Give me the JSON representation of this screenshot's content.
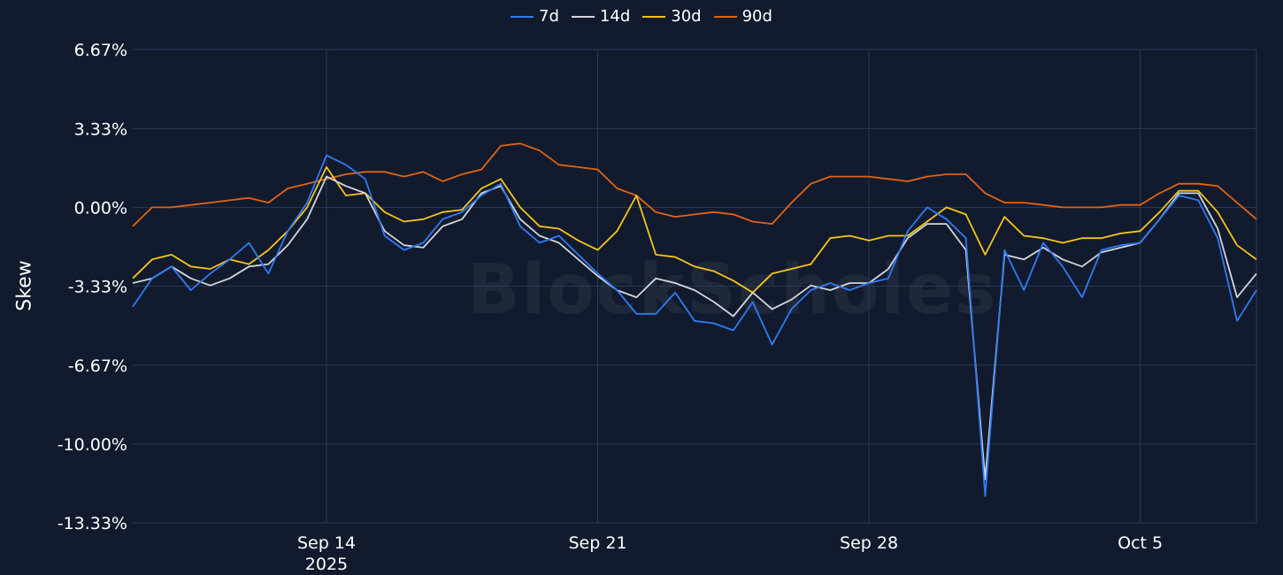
{
  "legend": [
    "7d",
    "14d",
    "30d",
    "90d"
  ],
  "watermark": "BlockScholes",
  "colors": {
    "background": "#111b2d",
    "grid": "#2a3a5a",
    "7d": "#2f7bf6",
    "14d": "#d3d6dc",
    "30d": "#f5c518",
    "90d": "#e06414"
  },
  "chart_data": {
    "type": "line",
    "ylabel": "Skew",
    "y_ticks": [
      "6.67%",
      "3.33%",
      "0.00%",
      "-3.33%",
      "-6.67%",
      "-10.00%",
      "-13.33%"
    ],
    "y_tick_values": [
      6.67,
      3.33,
      0.0,
      -3.33,
      -6.67,
      -10.0,
      -13.33
    ],
    "ylim": [
      -13.33,
      6.67
    ],
    "x_range": [
      "2025-09-09",
      "2025-10-08"
    ],
    "x_ticks": [
      {
        "label": "Sep 14",
        "sub": "2025",
        "date": "2025-09-14"
      },
      {
        "label": "Sep 21",
        "sub": "",
        "date": "2025-09-21"
      },
      {
        "label": "Sep 28",
        "sub": "",
        "date": "2025-09-28"
      },
      {
        "label": "Oct 5",
        "sub": "",
        "date": "2025-10-05"
      }
    ],
    "grid": true,
    "legend_position": "top-center",
    "series": [
      {
        "name": "7d",
        "x": [
          "2025-09-09",
          "2025-09-09T12:00",
          "2025-09-10",
          "2025-09-10T12:00",
          "2025-09-11",
          "2025-09-11T12:00",
          "2025-09-12",
          "2025-09-12T12:00",
          "2025-09-13",
          "2025-09-13T12:00",
          "2025-09-14",
          "2025-09-14T12:00",
          "2025-09-15",
          "2025-09-15T12:00",
          "2025-09-16",
          "2025-09-16T12:00",
          "2025-09-17",
          "2025-09-17T12:00",
          "2025-09-18",
          "2025-09-18T12:00",
          "2025-09-19",
          "2025-09-19T12:00",
          "2025-09-20",
          "2025-09-20T12:00",
          "2025-09-21",
          "2025-09-21T12:00",
          "2025-09-22",
          "2025-09-22T12:00",
          "2025-09-23",
          "2025-09-23T12:00",
          "2025-09-24",
          "2025-09-24T12:00",
          "2025-09-25",
          "2025-09-25T12:00",
          "2025-09-26",
          "2025-09-26T12:00",
          "2025-09-27",
          "2025-09-27T12:00",
          "2025-09-28",
          "2025-09-28T12:00",
          "2025-09-29",
          "2025-09-29T12:00",
          "2025-09-30",
          "2025-09-30T12:00",
          "2025-10-01",
          "2025-10-01T12:00",
          "2025-10-02",
          "2025-10-02T12:00",
          "2025-10-03",
          "2025-10-03T12:00",
          "2025-10-04",
          "2025-10-04T12:00",
          "2025-10-05",
          "2025-10-05T12:00",
          "2025-10-06",
          "2025-10-06T12:00",
          "2025-10-07",
          "2025-10-07T12:00",
          "2025-10-08"
        ],
        "values": [
          -4.2,
          -3.0,
          -2.5,
          -3.5,
          -2.8,
          -2.2,
          -1.5,
          -2.8,
          -1.0,
          0.2,
          2.2,
          1.8,
          1.2,
          -1.2,
          -1.8,
          -1.5,
          -0.5,
          -0.2,
          0.5,
          1.0,
          -0.8,
          -1.5,
          -1.2,
          -2.0,
          -2.8,
          -3.5,
          -4.5,
          -4.5,
          -3.6,
          -4.8,
          -4.9,
          -5.2,
          -4.0,
          -5.8,
          -4.3,
          -3.5,
          -3.2,
          -3.5,
          -3.2,
          -3.0,
          -1.0,
          0.0,
          -0.5,
          -1.3,
          -12.2,
          -1.8,
          -3.5,
          -1.5,
          -2.5,
          -3.8,
          -1.8,
          -1.6,
          -1.5,
          -0.5,
          0.5,
          0.3,
          -1.3,
          -4.8,
          -3.5
        ]
      },
      {
        "name": "14d",
        "x": [
          "2025-09-09",
          "2025-09-09T12:00",
          "2025-09-10",
          "2025-09-10T12:00",
          "2025-09-11",
          "2025-09-11T12:00",
          "2025-09-12",
          "2025-09-12T12:00",
          "2025-09-13",
          "2025-09-13T12:00",
          "2025-09-14",
          "2025-09-14T12:00",
          "2025-09-15",
          "2025-09-15T12:00",
          "2025-09-16",
          "2025-09-16T12:00",
          "2025-09-17",
          "2025-09-17T12:00",
          "2025-09-18",
          "2025-09-18T12:00",
          "2025-09-19",
          "2025-09-19T12:00",
          "2025-09-20",
          "2025-09-20T12:00",
          "2025-09-21",
          "2025-09-21T12:00",
          "2025-09-22",
          "2025-09-22T12:00",
          "2025-09-23",
          "2025-09-23T12:00",
          "2025-09-24",
          "2025-09-24T12:00",
          "2025-09-25",
          "2025-09-25T12:00",
          "2025-09-26",
          "2025-09-26T12:00",
          "2025-09-27",
          "2025-09-27T12:00",
          "2025-09-28",
          "2025-09-28T12:00",
          "2025-09-29",
          "2025-09-29T12:00",
          "2025-09-30",
          "2025-09-30T12:00",
          "2025-10-01",
          "2025-10-01T12:00",
          "2025-10-02",
          "2025-10-02T12:00",
          "2025-10-03",
          "2025-10-03T12:00",
          "2025-10-04",
          "2025-10-04T12:00",
          "2025-10-05",
          "2025-10-05T12:00",
          "2025-10-06",
          "2025-10-06T12:00",
          "2025-10-07",
          "2025-10-07T12:00",
          "2025-10-08"
        ],
        "values": [
          -3.2,
          -3.0,
          -2.5,
          -3.0,
          -3.3,
          -3.0,
          -2.5,
          -2.4,
          -1.6,
          -0.5,
          1.3,
          0.9,
          0.6,
          -1.0,
          -1.6,
          -1.7,
          -0.8,
          -0.5,
          0.6,
          0.9,
          -0.5,
          -1.2,
          -1.5,
          -2.2,
          -2.9,
          -3.5,
          -3.8,
          -3.0,
          -3.2,
          -3.5,
          -4.0,
          -4.6,
          -3.6,
          -4.3,
          -3.9,
          -3.3,
          -3.5,
          -3.2,
          -3.2,
          -2.6,
          -1.3,
          -0.7,
          -0.7,
          -1.8,
          -11.5,
          -2.0,
          -2.2,
          -1.7,
          -2.2,
          -2.5,
          -1.9,
          -1.7,
          -1.5,
          -0.5,
          0.6,
          0.6,
          -0.9,
          -3.8,
          -2.8
        ]
      },
      {
        "name": "30d",
        "x": [
          "2025-09-09",
          "2025-09-09T12:00",
          "2025-09-10",
          "2025-09-10T12:00",
          "2025-09-11",
          "2025-09-11T12:00",
          "2025-09-12",
          "2025-09-12T12:00",
          "2025-09-13",
          "2025-09-13T12:00",
          "2025-09-14",
          "2025-09-14T12:00",
          "2025-09-15",
          "2025-09-15T12:00",
          "2025-09-16",
          "2025-09-16T12:00",
          "2025-09-17",
          "2025-09-17T12:00",
          "2025-09-18",
          "2025-09-18T12:00",
          "2025-09-19",
          "2025-09-19T12:00",
          "2025-09-20",
          "2025-09-20T12:00",
          "2025-09-21",
          "2025-09-21T12:00",
          "2025-09-22",
          "2025-09-22T12:00",
          "2025-09-23",
          "2025-09-23T12:00",
          "2025-09-24",
          "2025-09-24T12:00",
          "2025-09-25",
          "2025-09-25T12:00",
          "2025-09-26",
          "2025-09-26T12:00",
          "2025-09-27",
          "2025-09-27T12:00",
          "2025-09-28",
          "2025-09-28T12:00",
          "2025-09-29",
          "2025-09-29T12:00",
          "2025-09-30",
          "2025-09-30T12:00",
          "2025-10-01",
          "2025-10-01T12:00",
          "2025-10-02",
          "2025-10-02T12:00",
          "2025-10-03",
          "2025-10-03T12:00",
          "2025-10-04",
          "2025-10-04T12:00",
          "2025-10-05",
          "2025-10-05T12:00",
          "2025-10-06",
          "2025-10-06T12:00",
          "2025-10-07",
          "2025-10-07T12:00",
          "2025-10-08"
        ],
        "values": [
          -3.0,
          -2.2,
          -2.0,
          -2.5,
          -2.6,
          -2.2,
          -2.4,
          -1.8,
          -1.0,
          0.0,
          1.7,
          0.5,
          0.6,
          -0.2,
          -0.6,
          -0.5,
          -0.2,
          -0.1,
          0.8,
          1.2,
          0.0,
          -0.8,
          -0.9,
          -1.4,
          -1.8,
          -1.0,
          0.5,
          -2.0,
          -2.1,
          -2.5,
          -2.7,
          -3.1,
          -3.6,
          -2.8,
          -2.6,
          -2.4,
          -1.3,
          -1.2,
          -1.4,
          -1.2,
          -1.2,
          -0.6,
          0.0,
          -0.3,
          -2.0,
          -0.4,
          -1.2,
          -1.3,
          -1.5,
          -1.3,
          -1.3,
          -1.1,
          -1.0,
          -0.2,
          0.7,
          0.7,
          -0.2,
          -1.6,
          -2.2
        ]
      },
      {
        "name": "90d",
        "x": [
          "2025-09-09",
          "2025-09-09T12:00",
          "2025-09-10",
          "2025-09-10T12:00",
          "2025-09-11",
          "2025-09-11T12:00",
          "2025-09-12",
          "2025-09-12T12:00",
          "2025-09-13",
          "2025-09-13T12:00",
          "2025-09-14",
          "2025-09-14T12:00",
          "2025-09-15",
          "2025-09-15T12:00",
          "2025-09-16",
          "2025-09-16T12:00",
          "2025-09-17",
          "2025-09-17T12:00",
          "2025-09-18",
          "2025-09-18T12:00",
          "2025-09-19",
          "2025-09-19T12:00",
          "2025-09-20",
          "2025-09-20T12:00",
          "2025-09-21",
          "2025-09-21T12:00",
          "2025-09-22",
          "2025-09-22T12:00",
          "2025-09-23",
          "2025-09-23T12:00",
          "2025-09-24",
          "2025-09-24T12:00",
          "2025-09-25",
          "2025-09-25T12:00",
          "2025-09-26",
          "2025-09-26T12:00",
          "2025-09-27",
          "2025-09-27T12:00",
          "2025-09-28",
          "2025-09-28T12:00",
          "2025-09-29",
          "2025-09-29T12:00",
          "2025-09-30",
          "2025-09-30T12:00",
          "2025-10-01",
          "2025-10-01T12:00",
          "2025-10-02",
          "2025-10-02T12:00",
          "2025-10-03",
          "2025-10-03T12:00",
          "2025-10-04",
          "2025-10-04T12:00",
          "2025-10-05",
          "2025-10-05T12:00",
          "2025-10-06",
          "2025-10-06T12:00",
          "2025-10-07",
          "2025-10-07T12:00",
          "2025-10-08"
        ],
        "values": [
          -0.8,
          0.0,
          0.0,
          0.1,
          0.2,
          0.3,
          0.4,
          0.2,
          0.8,
          1.0,
          1.2,
          1.4,
          1.5,
          1.5,
          1.3,
          1.5,
          1.1,
          1.4,
          1.6,
          2.6,
          2.7,
          2.4,
          1.8,
          1.7,
          1.6,
          0.8,
          0.5,
          -0.2,
          -0.4,
          -0.3,
          -0.2,
          -0.3,
          -0.6,
          -0.7,
          0.2,
          1.0,
          1.3,
          1.3,
          1.3,
          1.2,
          1.1,
          1.3,
          1.4,
          1.4,
          0.6,
          0.2,
          0.2,
          0.1,
          0.0,
          0.0,
          0.0,
          0.1,
          0.1,
          0.6,
          1.0,
          1.0,
          0.9,
          0.2,
          -0.5
        ]
      }
    ]
  }
}
